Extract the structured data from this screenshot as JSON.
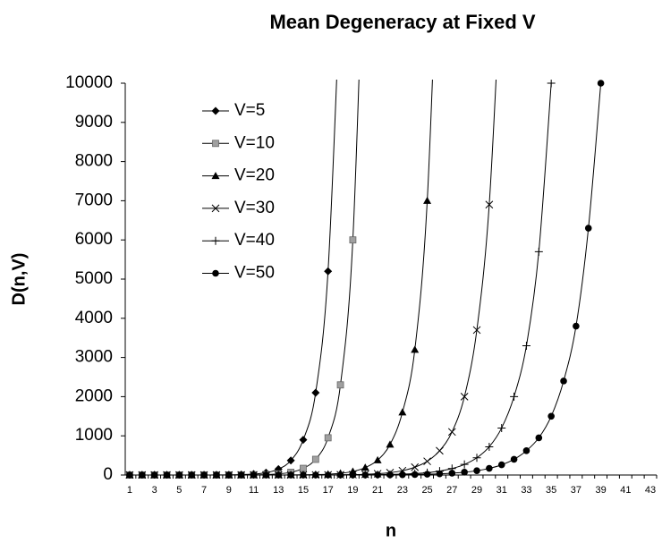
{
  "chart_data": {
    "type": "line",
    "title": "Mean Degeneracy at Fixed V",
    "xlabel": "n",
    "ylabel": "D(n,V)",
    "categories": [
      1,
      null,
      3,
      null,
      5,
      null,
      7,
      null,
      9,
      null,
      11,
      null,
      13,
      null,
      15,
      null,
      17,
      null,
      19,
      null,
      21,
      null,
      23,
      null,
      25,
      null,
      27,
      null,
      29,
      null,
      31,
      null,
      33,
      null,
      35,
      null,
      37,
      null,
      39,
      null,
      41,
      null,
      43
    ],
    "ylim": [
      0,
      10000
    ],
    "yticks": [
      0,
      1000,
      2000,
      3000,
      4000,
      5000,
      6000,
      7000,
      8000,
      9000,
      10000
    ],
    "grid": false,
    "legend": "upper left",
    "series": [
      {
        "name": "V=5",
        "color": "#000000",
        "marker": "diamond",
        "values": [
          0,
          0,
          0,
          0,
          0,
          0,
          1,
          2,
          4,
          10,
          25,
          60,
          150,
          370,
          900,
          2100,
          5200,
          12500,
          null,
          null,
          null,
          null,
          null,
          null,
          null,
          null,
          null,
          null,
          null,
          null,
          null,
          null,
          null,
          null,
          null,
          null,
          null,
          null,
          null,
          null,
          null,
          null,
          null
        ]
      },
      {
        "name": "V=10",
        "color": "#a0a0a0",
        "marker": "square",
        "values": [
          0,
          0,
          0,
          0,
          0,
          0,
          0,
          0,
          1,
          2,
          5,
          12,
          30,
          70,
          170,
          400,
          950,
          2300,
          6000,
          15000,
          null,
          null,
          null,
          null,
          null,
          null,
          null,
          null,
          null,
          null,
          null,
          null,
          null,
          null,
          null,
          null,
          null,
          null,
          null,
          null,
          null,
          null,
          null
        ]
      },
      {
        "name": "V=20",
        "color": "#000000",
        "marker": "triangle",
        "values": [
          0,
          0,
          0,
          0,
          0,
          0,
          0,
          0,
          0,
          0,
          0,
          0,
          1,
          2,
          5,
          10,
          20,
          45,
          90,
          190,
          380,
          780,
          1600,
          3200,
          7000,
          15000,
          null,
          null,
          null,
          null,
          null,
          null,
          null,
          null,
          null,
          null,
          null,
          null,
          null,
          null,
          null,
          null,
          null
        ]
      },
      {
        "name": "V=30",
        "color": "#000000",
        "marker": "x",
        "values": [
          0,
          0,
          0,
          0,
          0,
          0,
          0,
          0,
          0,
          0,
          0,
          0,
          0,
          0,
          0,
          1,
          3,
          5,
          10,
          18,
          33,
          60,
          110,
          200,
          350,
          620,
          1100,
          2000,
          3700,
          6900,
          13000,
          null,
          null,
          null,
          null,
          null,
          null,
          null,
          null,
          null,
          null,
          null,
          null
        ]
      },
      {
        "name": "V=40",
        "color": "#000000",
        "marker": "plus",
        "values": [
          0,
          0,
          0,
          0,
          0,
          0,
          0,
          0,
          0,
          0,
          0,
          0,
          0,
          0,
          0,
          0,
          1,
          2,
          3,
          5,
          8,
          13,
          22,
          37,
          60,
          100,
          165,
          270,
          440,
          720,
          1200,
          2000,
          3300,
          5700,
          10000,
          null,
          null,
          null,
          null,
          null,
          null,
          null,
          null
        ]
      },
      {
        "name": "V=50",
        "color": "#000000",
        "marker": "circle",
        "values": [
          0,
          0,
          0,
          0,
          0,
          0,
          0,
          0,
          0,
          0,
          0,
          0,
          0,
          0,
          0,
          0,
          0,
          0,
          1,
          2,
          3,
          5,
          8,
          13,
          20,
          30,
          47,
          72,
          110,
          170,
          260,
          400,
          620,
          950,
          1500,
          2400,
          3800,
          6300,
          10000,
          null,
          null,
          null,
          null
        ]
      }
    ]
  }
}
